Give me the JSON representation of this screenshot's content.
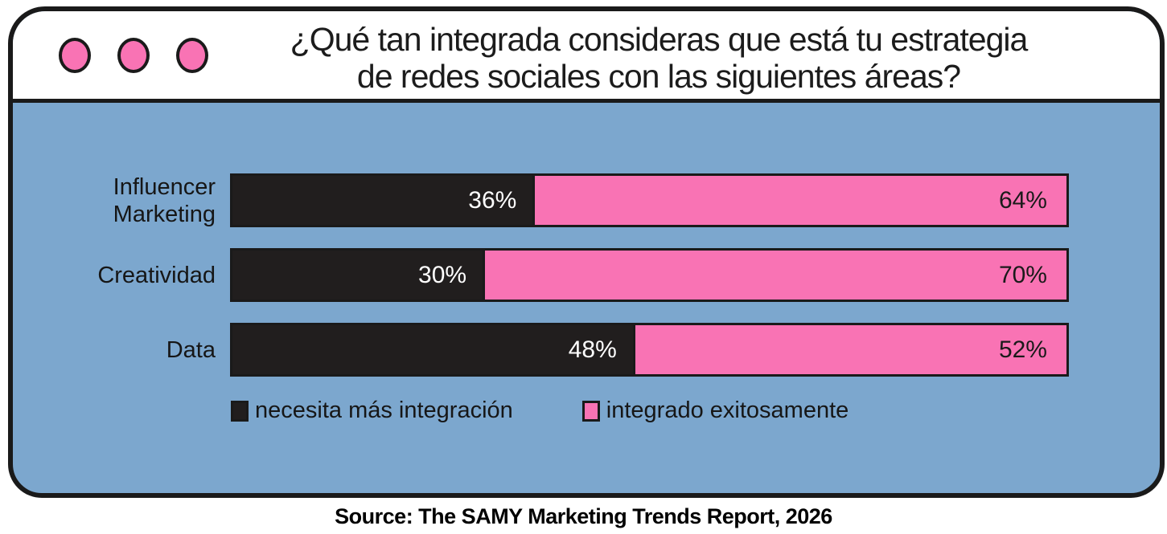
{
  "window": {
    "title_line1": "¿Qué tan integrada consideras que está tu estrategia",
    "title_line2": "de redes sociales con las siguientes áreas?"
  },
  "chart_data": {
    "type": "bar",
    "orientation": "horizontal",
    "stacked": true,
    "grid": false,
    "legend_position": "bottom",
    "title": "¿Qué tan integrada consideras que está tu estrategia de redes sociales con las siguientes áreas?",
    "categories": [
      "Influencer Marketing",
      "Creatividad",
      "Data"
    ],
    "category_display": [
      "Influencer\nMarketing",
      "Creatividad",
      "Data"
    ],
    "series": [
      {
        "name": "necesita más integración",
        "color": "#211E1E",
        "values": [
          36,
          30,
          48
        ]
      },
      {
        "name": "integrado exitosamente",
        "color": "#F973B4",
        "values": [
          64,
          70,
          52
        ]
      }
    ],
    "value_suffix": "%",
    "xlim": [
      0,
      100
    ]
  },
  "source": "Source: The SAMY Marketing Trends Report, 2026",
  "colors": {
    "panel_blue": "#7CA7CE",
    "accent_pink": "#F973B4",
    "bar_black": "#211E1E",
    "outline_black": "#1A1A1A",
    "titlebar_white": "#FFFFFF"
  }
}
